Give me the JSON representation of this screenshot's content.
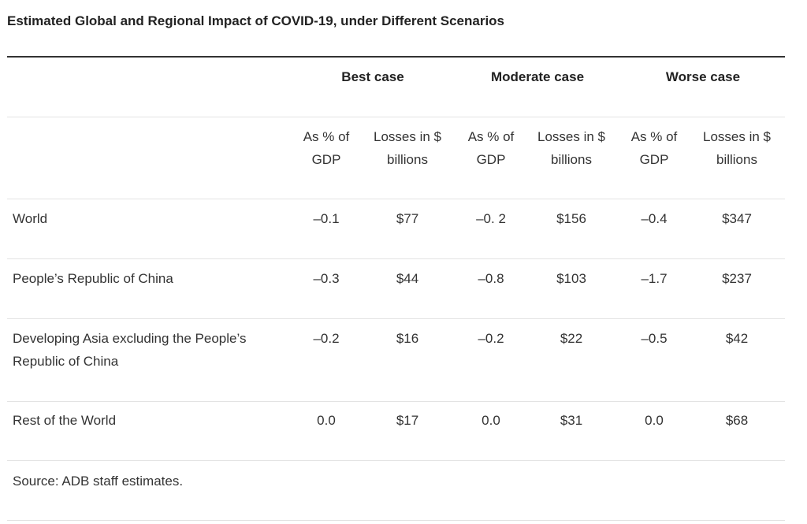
{
  "title": "Estimated Global and Regional Impact of COVID-19, under Different Scenarios",
  "groups": [
    "Best case",
    "Moderate case",
    "Worse case"
  ],
  "subheaders": [
    [
      "As % of",
      "GDP"
    ],
    [
      "Losses in $",
      "billions"
    ],
    [
      "As % of",
      "GDP"
    ],
    [
      "Losses in $",
      "billions"
    ],
    [
      "As % of",
      "GDP"
    ],
    [
      "Losses in $",
      "billions"
    ]
  ],
  "rows": [
    {
      "label": [
        "World"
      ],
      "values": [
        "–0.1",
        "$77",
        "–0. 2",
        "$156",
        "–0.4",
        "$347"
      ]
    },
    {
      "label": [
        "People’s Republic of China"
      ],
      "values": [
        "–0.3",
        "$44",
        "–0.8",
        "$103",
        "–1.7",
        "$237"
      ]
    },
    {
      "label": [
        "Developing Asia excluding the People’s",
        "Republic of China"
      ],
      "values": [
        "–0.2",
        "$16",
        "–0.2",
        "$22",
        "–0.5",
        "$42"
      ]
    },
    {
      "label": [
        "Rest of the World"
      ],
      "values": [
        "0.0",
        "$17",
        "0.0",
        "$31",
        "0.0",
        "$68"
      ]
    }
  ],
  "source": "Source: ADB staff estimates."
}
